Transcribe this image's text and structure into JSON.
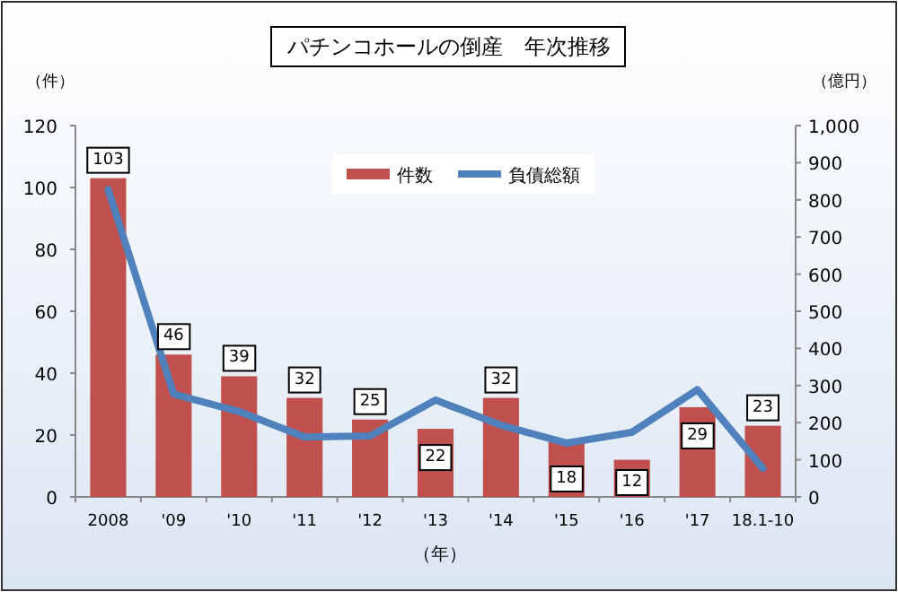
{
  "chart_data": {
    "type": "bar",
    "title": "パチンコホールの倒産　年次推移",
    "categories": [
      "2008",
      "'09",
      "'10",
      "'11",
      "'12",
      "'13",
      "'14",
      "'15",
      "'16",
      "'17",
      "18.1-10"
    ],
    "series": [
      {
        "name": "件数",
        "color": "#c0504d",
        "values": [
          103,
          46,
          39,
          32,
          25,
          22,
          32,
          18,
          12,
          29,
          23
        ],
        "value_labels": [
          "103",
          "46",
          "39",
          "32",
          "25",
          "22",
          "32",
          "18",
          "12",
          "29",
          "23"
        ]
      },
      {
        "name": "負債総額",
        "type": "line",
        "axis": "y2",
        "color": "#4f81bd",
        "values": [
          828,
          277,
          230,
          161,
          164,
          261,
          193,
          145,
          174,
          289,
          77
        ]
      }
    ],
    "ylabel": "（件）",
    "y2label": "（億円）",
    "xlabel": "（年）",
    "ylim": [
      0,
      120
    ],
    "yticks": [
      0,
      20,
      40,
      60,
      80,
      100,
      120
    ],
    "y2lim": [
      0,
      1000
    ],
    "y2ticks": [
      0,
      100,
      200,
      300,
      400,
      500,
      600,
      700,
      800,
      900,
      {
        "value": 1000,
        "label": "1,000"
      }
    ],
    "legend": "top"
  }
}
